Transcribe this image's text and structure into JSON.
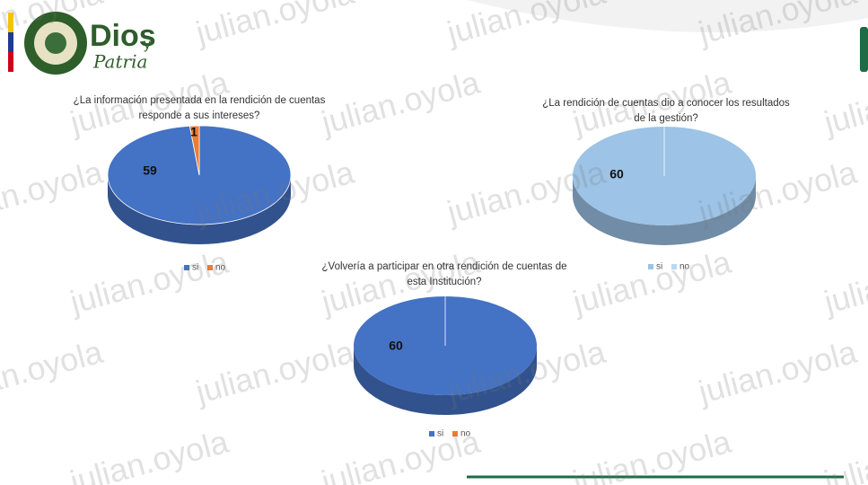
{
  "header": {
    "brand": "Dios",
    "brand_small": "y",
    "motto": "Patria"
  },
  "watermark": "julian.oyola",
  "chart_data": [
    {
      "type": "pie",
      "title": "¿La información presentada en la rendición de cuentas responde a sus intereses?",
      "categories": [
        "si",
        "no"
      ],
      "values": [
        59,
        1
      ],
      "colors": [
        "#4472c4",
        "#ed7d31"
      ],
      "legend": "bottom"
    },
    {
      "type": "pie",
      "title": "¿La rendición de cuentas dio a conocer los resultados de la gestión?",
      "categories": [
        "si",
        "no"
      ],
      "values": [
        60,
        0
      ],
      "colors": [
        "#9dc3e6",
        "#bdd7ee"
      ],
      "legend": "bottom"
    },
    {
      "type": "pie",
      "title": "¿Volvería a participar en otra rendición de cuentas de esta Institución?",
      "categories": [
        "si",
        "no"
      ],
      "values": [
        60,
        0
      ],
      "colors": [
        "#4472c4",
        "#ed7d31"
      ],
      "legend": "bottom"
    }
  ]
}
